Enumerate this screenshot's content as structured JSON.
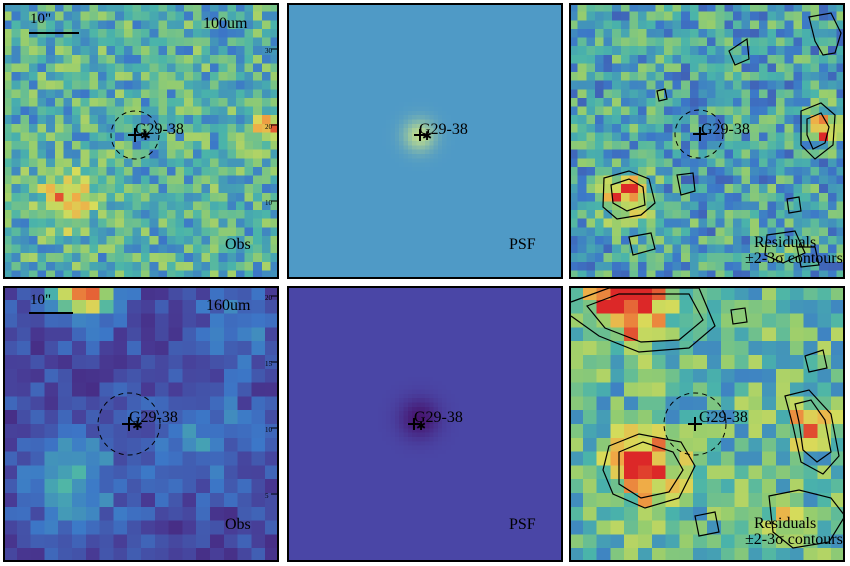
{
  "source_name": "G29-38",
  "scale_bar_label": "10\"",
  "rows": [
    {
      "band": "100um",
      "panels": [
        {
          "id": "p1",
          "kind": "obs",
          "label": "Obs",
          "axis_ticks": [
            "30",
            "20",
            "10"
          ]
        },
        {
          "id": "p2",
          "kind": "psf",
          "label": "PSF"
        },
        {
          "id": "p3",
          "kind": "residual",
          "label_line1": "Residuals",
          "label_line2": "±2-3σ contours"
        }
      ]
    },
    {
      "band": "160um",
      "panels": [
        {
          "id": "p4",
          "kind": "obs",
          "label": "Obs",
          "axis_ticks": [
            "20",
            "15",
            "10",
            "5"
          ]
        },
        {
          "id": "p5",
          "kind": "psf",
          "label": "PSF"
        },
        {
          "id": "p6",
          "kind": "residual",
          "label_line1": "Residuals",
          "label_line2": "±2-3σ contours"
        }
      ]
    }
  ],
  "colors": {
    "psf_row1_bg": "#4f9ac6",
    "psf_row2_bg": "#4a46a6",
    "frame": "#000000"
  }
}
